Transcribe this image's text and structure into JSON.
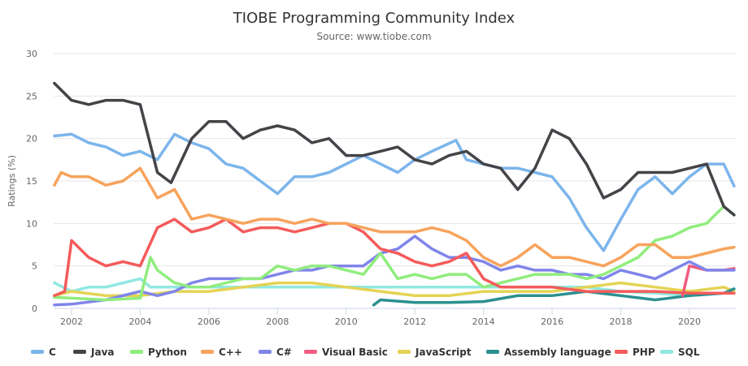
{
  "chart_data": {
    "type": "line",
    "title": "TIOBE Programming Community Index",
    "subtitle": "Source: www.tiobe.com",
    "ylabel": "Ratings (%)",
    "xlabel": "",
    "ylim": [
      0,
      30
    ],
    "xlim": [
      2001.5,
      2021.35
    ],
    "yticks": [
      "0",
      "5",
      "10",
      "15",
      "20",
      "25",
      "30"
    ],
    "xticks": [
      "2002",
      "2004",
      "2006",
      "2008",
      "2010",
      "2012",
      "2014",
      "2016",
      "2018",
      "2020"
    ],
    "grid": true,
    "legend": "bottom",
    "series": [
      {
        "name": "C",
        "color": "#7cb5ec",
        "points": [
          [
            2001.5,
            20.3
          ],
          [
            2002,
            20.5
          ],
          [
            2002.5,
            19.5
          ],
          [
            2003,
            19
          ],
          [
            2003.5,
            18
          ],
          [
            2004,
            18.5
          ],
          [
            2004.5,
            17.5
          ],
          [
            2005,
            20.5
          ],
          [
            2005.5,
            19.5
          ],
          [
            2006,
            18.8
          ],
          [
            2006.5,
            17
          ],
          [
            2007,
            16.5
          ],
          [
            2007.5,
            15
          ],
          [
            2008,
            13.5
          ],
          [
            2008.5,
            15.5
          ],
          [
            2009,
            15.5
          ],
          [
            2009.5,
            16
          ],
          [
            2010,
            17
          ],
          [
            2010.5,
            18
          ],
          [
            2011,
            17
          ],
          [
            2011.5,
            16
          ],
          [
            2012,
            17.5
          ],
          [
            2012.5,
            18.5
          ],
          [
            2013.2,
            19.8
          ],
          [
            2013.5,
            17.5
          ],
          [
            2014,
            17
          ],
          [
            2014.5,
            16.5
          ],
          [
            2015,
            16.5
          ],
          [
            2015.5,
            16
          ],
          [
            2016,
            15.5
          ],
          [
            2016.5,
            13
          ],
          [
            2017,
            9.5
          ],
          [
            2017.5,
            6.8
          ],
          [
            2018,
            10.5
          ],
          [
            2018.5,
            14
          ],
          [
            2019,
            15.5
          ],
          [
            2019.5,
            13.5
          ],
          [
            2020,
            15.5
          ],
          [
            2020.5,
            17
          ],
          [
            2021,
            17
          ],
          [
            2021.3,
            14.4
          ]
        ]
      },
      {
        "name": "Java",
        "color": "#434348",
        "points": [
          [
            2001.5,
            26.5
          ],
          [
            2002,
            24.5
          ],
          [
            2002.5,
            24
          ],
          [
            2003,
            24.5
          ],
          [
            2003.5,
            24.5
          ],
          [
            2004,
            24
          ],
          [
            2004.5,
            16
          ],
          [
            2004.9,
            14.8
          ],
          [
            2005.5,
            20
          ],
          [
            2006,
            22
          ],
          [
            2006.5,
            22
          ],
          [
            2007,
            20
          ],
          [
            2007.5,
            21
          ],
          [
            2008,
            21.5
          ],
          [
            2008.5,
            21
          ],
          [
            2009,
            19.5
          ],
          [
            2009.5,
            20
          ],
          [
            2010,
            18
          ],
          [
            2010.5,
            18
          ],
          [
            2011,
            18.5
          ],
          [
            2011.5,
            19
          ],
          [
            2012,
            17.5
          ],
          [
            2012.5,
            17
          ],
          [
            2013,
            18
          ],
          [
            2013.5,
            18.5
          ],
          [
            2014,
            17
          ],
          [
            2014.5,
            16.5
          ],
          [
            2015,
            14
          ],
          [
            2015.5,
            16.5
          ],
          [
            2016,
            21
          ],
          [
            2016.5,
            20
          ],
          [
            2017,
            17
          ],
          [
            2017.5,
            13
          ],
          [
            2018,
            14
          ],
          [
            2018.5,
            16
          ],
          [
            2019,
            16
          ],
          [
            2019.5,
            16
          ],
          [
            2020,
            16.5
          ],
          [
            2020.5,
            17
          ],
          [
            2021,
            12
          ],
          [
            2021.3,
            11
          ]
        ]
      },
      {
        "name": "Python",
        "color": "#90ed7d",
        "points": [
          [
            2001.5,
            1.3
          ],
          [
            2002,
            1.2
          ],
          [
            2003,
            1
          ],
          [
            2004,
            1.2
          ],
          [
            2004.3,
            6
          ],
          [
            2004.5,
            4.5
          ],
          [
            2005,
            3
          ],
          [
            2005.5,
            2.5
          ],
          [
            2006,
            2.5
          ],
          [
            2007,
            3.5
          ],
          [
            2007.5,
            3.5
          ],
          [
            2008,
            5
          ],
          [
            2008.5,
            4.5
          ],
          [
            2009,
            5
          ],
          [
            2009.5,
            5
          ],
          [
            2010,
            4.5
          ],
          [
            2010.5,
            4
          ],
          [
            2011,
            6.5
          ],
          [
            2011.5,
            3.5
          ],
          [
            2012,
            4
          ],
          [
            2012.5,
            3.5
          ],
          [
            2013,
            4
          ],
          [
            2013.5,
            4
          ],
          [
            2014,
            2.5
          ],
          [
            2014.5,
            3
          ],
          [
            2015,
            3.5
          ],
          [
            2015.5,
            4
          ],
          [
            2016,
            4
          ],
          [
            2016.5,
            4
          ],
          [
            2017,
            3.5
          ],
          [
            2017.5,
            4
          ],
          [
            2018,
            5
          ],
          [
            2018.5,
            6
          ],
          [
            2019,
            8
          ],
          [
            2019.5,
            8.5
          ],
          [
            2020,
            9.5
          ],
          [
            2020.5,
            10
          ],
          [
            2021,
            12
          ],
          [
            2021.3,
            11
          ]
        ]
      },
      {
        "name": "C++",
        "color": "#f7a35c",
        "points": [
          [
            2001.5,
            14.5
          ],
          [
            2001.7,
            16
          ],
          [
            2002,
            15.5
          ],
          [
            2002.5,
            15.5
          ],
          [
            2003,
            14.5
          ],
          [
            2003.5,
            15
          ],
          [
            2004,
            16.5
          ],
          [
            2004.5,
            13
          ],
          [
            2005,
            14
          ],
          [
            2005.5,
            10.5
          ],
          [
            2006,
            11
          ],
          [
            2006.5,
            10.5
          ],
          [
            2007,
            10
          ],
          [
            2007.5,
            10.5
          ],
          [
            2008,
            10.5
          ],
          [
            2008.5,
            10
          ],
          [
            2009,
            10.5
          ],
          [
            2009.5,
            10
          ],
          [
            2010,
            10
          ],
          [
            2010.5,
            9.5
          ],
          [
            2011,
            9
          ],
          [
            2011.5,
            9
          ],
          [
            2012,
            9
          ],
          [
            2012.5,
            9.5
          ],
          [
            2013,
            9
          ],
          [
            2013.5,
            8
          ],
          [
            2014,
            6
          ],
          [
            2014.5,
            5
          ],
          [
            2015,
            6
          ],
          [
            2015.5,
            7.5
          ],
          [
            2016,
            6
          ],
          [
            2016.5,
            6
          ],
          [
            2017,
            5.5
          ],
          [
            2017.5,
            5
          ],
          [
            2018,
            6
          ],
          [
            2018.5,
            7.5
          ],
          [
            2019,
            7.5
          ],
          [
            2019.5,
            6
          ],
          [
            2020,
            6
          ],
          [
            2020.5,
            6.5
          ],
          [
            2021,
            7
          ],
          [
            2021.3,
            7.2
          ]
        ]
      },
      {
        "name": "C#",
        "color": "#8085e9",
        "points": [
          [
            2001.5,
            0.4
          ],
          [
            2002,
            0.5
          ],
          [
            2003,
            1
          ],
          [
            2004,
            2
          ],
          [
            2004.5,
            1.5
          ],
          [
            2005,
            2
          ],
          [
            2005.5,
            3
          ],
          [
            2006,
            3.5
          ],
          [
            2007,
            3.5
          ],
          [
            2007.5,
            3.5
          ],
          [
            2008,
            4
          ],
          [
            2008.5,
            4.5
          ],
          [
            2009,
            4.5
          ],
          [
            2009.5,
            5
          ],
          [
            2010,
            5
          ],
          [
            2010.5,
            5
          ],
          [
            2011,
            6.5
          ],
          [
            2011.5,
            7
          ],
          [
            2012,
            8.5
          ],
          [
            2012.5,
            7
          ],
          [
            2013,
            6
          ],
          [
            2013.5,
            6
          ],
          [
            2014,
            5.5
          ],
          [
            2014.5,
            4.5
          ],
          [
            2015,
            5
          ],
          [
            2015.5,
            4.5
          ],
          [
            2016,
            4.5
          ],
          [
            2016.5,
            4
          ],
          [
            2017,
            4
          ],
          [
            2017.5,
            3.5
          ],
          [
            2018,
            4.5
          ],
          [
            2018.5,
            4
          ],
          [
            2019,
            3.5
          ],
          [
            2019.5,
            4.5
          ],
          [
            2020,
            5.5
          ],
          [
            2020.5,
            4.5
          ],
          [
            2021,
            4.5
          ],
          [
            2021.3,
            4.5
          ]
        ]
      },
      {
        "name": "Visual Basic",
        "color": "#f15c80",
        "points": [
          [
            2019.8,
            1.5
          ],
          [
            2020,
            5
          ],
          [
            2020.5,
            4.5
          ],
          [
            2021,
            4.5
          ],
          [
            2021.3,
            4.7
          ]
        ]
      },
      {
        "name": "JavaScript",
        "color": "#e4d354",
        "points": [
          [
            2001.5,
            1.5
          ],
          [
            2002,
            2
          ],
          [
            2003,
            1.5
          ],
          [
            2004,
            1.5
          ],
          [
            2005,
            2
          ],
          [
            2006,
            2
          ],
          [
            2007,
            2.5
          ],
          [
            2008,
            3
          ],
          [
            2009,
            3
          ],
          [
            2010,
            2.5
          ],
          [
            2011,
            2
          ],
          [
            2012,
            1.5
          ],
          [
            2013,
            1.5
          ],
          [
            2014,
            2
          ],
          [
            2015,
            2
          ],
          [
            2016,
            2
          ],
          [
            2017,
            2.5
          ],
          [
            2018,
            3
          ],
          [
            2019,
            2.5
          ],
          [
            2020,
            2
          ],
          [
            2021,
            2.5
          ],
          [
            2021.3,
            2
          ]
        ]
      },
      {
        "name": "Assembly language",
        "color": "#2b908f",
        "points": [
          [
            2010.8,
            0.4
          ],
          [
            2011,
            1
          ],
          [
            2012,
            0.7
          ],
          [
            2013,
            0.7
          ],
          [
            2014,
            0.8
          ],
          [
            2015,
            1.5
          ],
          [
            2016,
            1.5
          ],
          [
            2017,
            2
          ],
          [
            2018,
            1.5
          ],
          [
            2019,
            1
          ],
          [
            2020,
            1.5
          ],
          [
            2021,
            1.8
          ],
          [
            2021.3,
            2.3
          ]
        ]
      },
      {
        "name": "PHP",
        "color": "#f45b5b",
        "points": [
          [
            2001.5,
            1.5
          ],
          [
            2001.8,
            2
          ],
          [
            2002,
            8
          ],
          [
            2002.5,
            6
          ],
          [
            2003,
            5
          ],
          [
            2003.5,
            5.5
          ],
          [
            2004,
            5
          ],
          [
            2004.5,
            9.5
          ],
          [
            2005,
            10.5
          ],
          [
            2005.5,
            9
          ],
          [
            2006,
            9.5
          ],
          [
            2006.5,
            10.5
          ],
          [
            2007,
            9
          ],
          [
            2007.5,
            9.5
          ],
          [
            2008,
            9.5
          ],
          [
            2008.5,
            9
          ],
          [
            2009,
            9.5
          ],
          [
            2009.5,
            10
          ],
          [
            2010,
            10
          ],
          [
            2010.5,
            9
          ],
          [
            2011,
            7
          ],
          [
            2011.5,
            6.5
          ],
          [
            2012,
            5.5
          ],
          [
            2012.5,
            5
          ],
          [
            2013,
            5.5
          ],
          [
            2013.5,
            6.5
          ],
          [
            2014,
            3.5
          ],
          [
            2014.5,
            2.5
          ],
          [
            2015,
            2.5
          ],
          [
            2016,
            2.5
          ],
          [
            2017,
            2
          ],
          [
            2018,
            2
          ],
          [
            2019,
            2
          ],
          [
            2020,
            1.8
          ],
          [
            2021,
            1.8
          ],
          [
            2021.3,
            1.8
          ]
        ]
      },
      {
        "name": "SQL",
        "color": "#91e8e1",
        "points": [
          [
            2001.5,
            3
          ],
          [
            2002,
            2
          ],
          [
            2002.5,
            2.5
          ],
          [
            2003,
            2.5
          ],
          [
            2004,
            3.5
          ],
          [
            2004.3,
            2.5
          ],
          [
            2010,
            2.5
          ],
          [
            2017,
            2.5
          ],
          [
            2018,
            2
          ],
          [
            2019,
            1.8
          ],
          [
            2020,
            1.5
          ],
          [
            2021,
            1.8
          ],
          [
            2021.3,
            1.8
          ]
        ]
      }
    ]
  }
}
